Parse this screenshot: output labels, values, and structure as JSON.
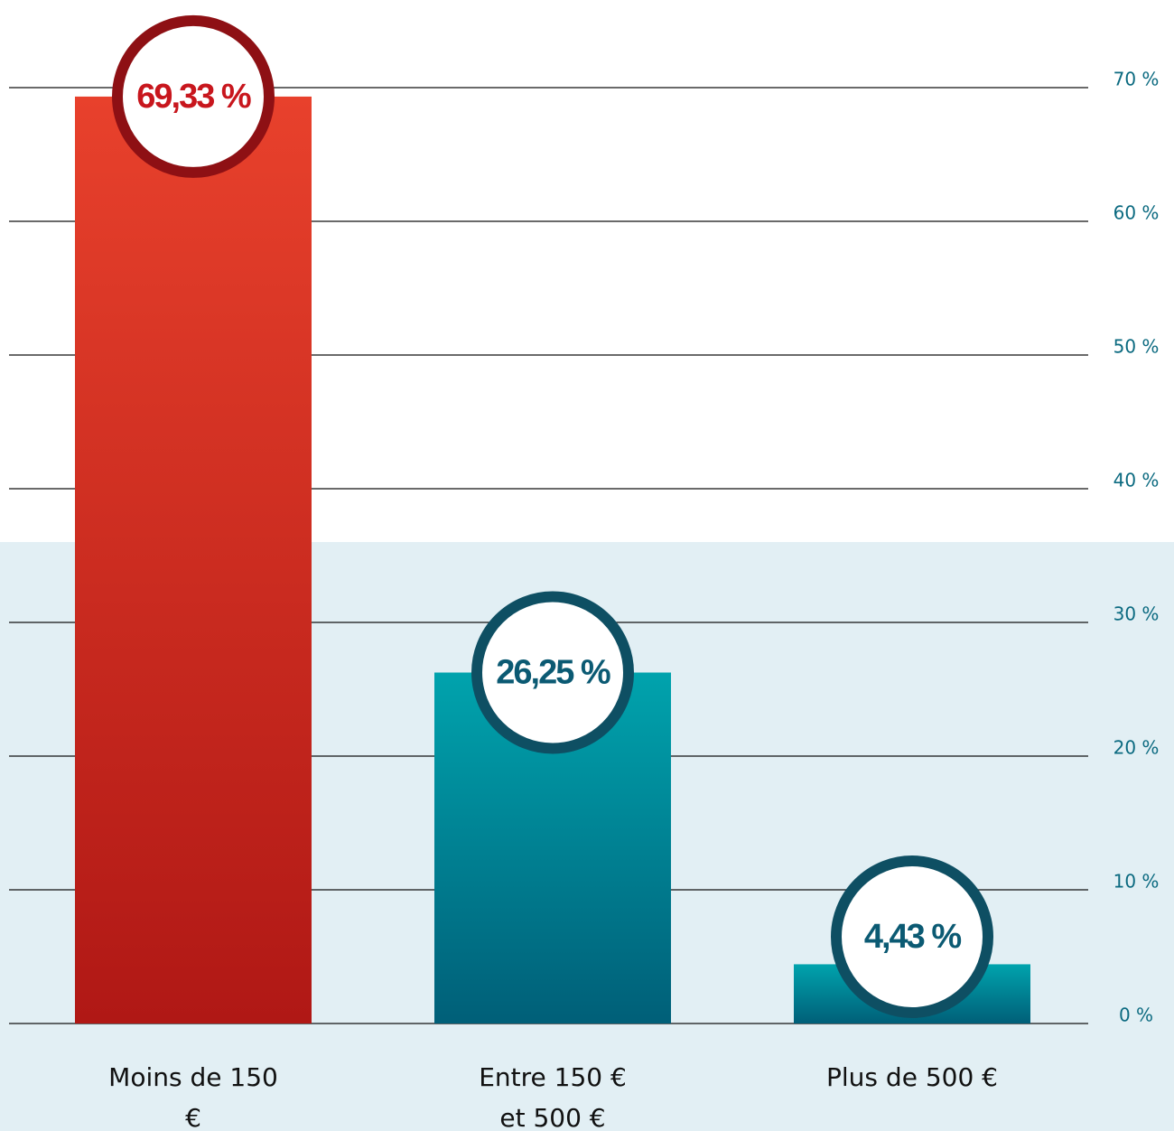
{
  "chart_data": {
    "type": "bar",
    "categories": [
      "Moins de 150 €",
      "Entre 150 € et 500 €",
      "Plus de 500 €"
    ],
    "values": [
      69.33,
      26.25,
      4.43
    ],
    "value_labels": [
      "69,33 %",
      "26,25 %",
      "4,43 %"
    ],
    "colors": [
      [
        "#e8412c",
        "#b01815"
      ],
      [
        "#00a3ad",
        "#005f78"
      ],
      [
        "#00a3ad",
        "#005f78"
      ]
    ],
    "ring_colors": [
      "#8e1014",
      "#0e4f63",
      "#0e4f63"
    ],
    "label_colors": [
      "#c8161d",
      "#0b5a73",
      "#0b5a73"
    ],
    "ylim": [
      0,
      70
    ],
    "yticks": [
      {
        "value": 0,
        "label": "0 %"
      },
      {
        "value": 10,
        "label": "10 %"
      },
      {
        "value": 20,
        "label": "20 %"
      },
      {
        "value": 30,
        "label": "30 %"
      },
      {
        "value": 40,
        "label": "40 %"
      },
      {
        "value": 50,
        "label": "50 %"
      },
      {
        "value": 60,
        "label": "60 %"
      },
      {
        "value": 70,
        "label": "70 %"
      }
    ],
    "grid": true
  }
}
